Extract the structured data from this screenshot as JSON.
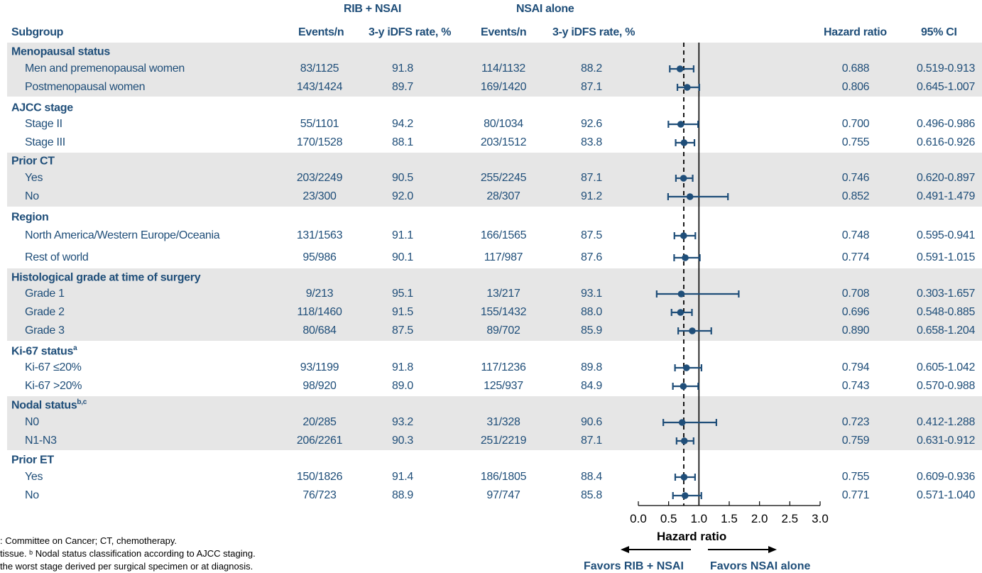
{
  "headers": {
    "rib_group": "RIB + NSAI",
    "nsai_group": "NSAI alone",
    "subgroup": "Subgroup",
    "events_rib": "Events/n",
    "rate_rib": "3-y iDFS rate, %",
    "events_nsai": "Events/n",
    "rate_nsai": "3-y iDFS rate, %",
    "hr": "Hazard ratio",
    "ci": "95% CI"
  },
  "groups": [
    {
      "label": "Menopausal status",
      "sup": ""
    },
    {
      "label": "AJCC stage",
      "sup": ""
    },
    {
      "label": "Prior CT",
      "sup": ""
    },
    {
      "label": "Region",
      "sup": ""
    },
    {
      "label": "Histological grade at time of surgery",
      "sup": ""
    },
    {
      "label": "Ki-67 status",
      "sup": "a"
    },
    {
      "label": "Nodal status",
      "sup": "b,c"
    },
    {
      "label": "Prior ET",
      "sup": ""
    }
  ],
  "rows": [
    {
      "label": "Men and premenopausal women",
      "ev_rib": "83/1125",
      "rate_rib": "91.8",
      "ev_nsai": "114/1132",
      "rate_nsai": "88.2",
      "hr": "0.688",
      "ci": "0.519-0.913"
    },
    {
      "label": "Postmenopausal women",
      "ev_rib": "143/1424",
      "rate_rib": "89.7",
      "ev_nsai": "169/1420",
      "rate_nsai": "87.1",
      "hr": "0.806",
      "ci": "0.645-1.007"
    },
    {
      "label": "Stage II",
      "ev_rib": "55/1101",
      "rate_rib": "94.2",
      "ev_nsai": "80/1034",
      "rate_nsai": "92.6",
      "hr": "0.700",
      "ci": "0.496-0.986"
    },
    {
      "label": "Stage III",
      "ev_rib": "170/1528",
      "rate_rib": "88.1",
      "ev_nsai": "203/1512",
      "rate_nsai": "83.8",
      "hr": "0.755",
      "ci": "0.616-0.926"
    },
    {
      "label": "Yes",
      "ev_rib": "203/2249",
      "rate_rib": "90.5",
      "ev_nsai": "255/2245",
      "rate_nsai": "87.1",
      "hr": "0.746",
      "ci": "0.620-0.897"
    },
    {
      "label": "No",
      "ev_rib": "23/300",
      "rate_rib": "92.0",
      "ev_nsai": "28/307",
      "rate_nsai": "91.2",
      "hr": "0.852",
      "ci": "0.491-1.479"
    },
    {
      "label": "North America/Western Europe/Oceania",
      "ev_rib": "131/1563",
      "rate_rib": "91.1",
      "ev_nsai": "166/1565",
      "rate_nsai": "87.5",
      "hr": "0.748",
      "ci": "0.595-0.941"
    },
    {
      "label": "Rest of world",
      "ev_rib": "95/986",
      "rate_rib": "90.1",
      "ev_nsai": "117/987",
      "rate_nsai": "87.6",
      "hr": "0.774",
      "ci": "0.591-1.015"
    },
    {
      "label": "Grade 1",
      "ev_rib": "9/213",
      "rate_rib": "95.1",
      "ev_nsai": "13/217",
      "rate_nsai": "93.1",
      "hr": "0.708",
      "ci": "0.303-1.657"
    },
    {
      "label": "Grade 2",
      "ev_rib": "118/1460",
      "rate_rib": "91.5",
      "ev_nsai": "155/1432",
      "rate_nsai": "88.0",
      "hr": "0.696",
      "ci": "0.548-0.885"
    },
    {
      "label": "Grade 3",
      "ev_rib": "80/684",
      "rate_rib": "87.5",
      "ev_nsai": "89/702",
      "rate_nsai": "85.9",
      "hr": "0.890",
      "ci": "0.658-1.204"
    },
    {
      "label": "Ki-67 ≤20%",
      "ev_rib": "93/1199",
      "rate_rib": "91.8",
      "ev_nsai": "117/1236",
      "rate_nsai": "89.8",
      "hr": "0.794",
      "ci": "0.605-1.042"
    },
    {
      "label": "Ki-67 >20%",
      "ev_rib": "98/920",
      "rate_rib": "89.0",
      "ev_nsai": "125/937",
      "rate_nsai": "84.9",
      "hr": "0.743",
      "ci": "0.570-0.988"
    },
    {
      "label": "N0",
      "ev_rib": "20/285",
      "rate_rib": "93.2",
      "ev_nsai": "31/328",
      "rate_nsai": "90.6",
      "hr": "0.723",
      "ci": "0.412-1.288"
    },
    {
      "label": "N1-N3",
      "ev_rib": "206/2261",
      "rate_rib": "90.3",
      "ev_nsai": "251/2219",
      "rate_nsai": "87.1",
      "hr": "0.759",
      "ci": "0.631-0.912"
    },
    {
      "label": "Yes",
      "ev_rib": "150/1826",
      "rate_rib": "91.4",
      "ev_nsai": "186/1805",
      "rate_nsai": "88.4",
      "hr": "0.755",
      "ci": "0.609-0.936"
    },
    {
      "label": "No",
      "ev_rib": "76/723",
      "rate_rib": "88.9",
      "ev_nsai": "97/747",
      "rate_nsai": "85.8",
      "hr": "0.771",
      "ci": "0.571-1.040"
    }
  ],
  "footnotes": [
    ": Committee on Cancer; CT, chemotherapy.",
    "tissue. ᵇ Nodal status classification according to AJCC staging.",
    "the worst stage derived per surgical specimen or at diagnosis."
  ],
  "favors": {
    "left": "Favors RIB + NSAI",
    "right": "Favors NSAI alone"
  },
  "chart_data": {
    "type": "forest",
    "xlabel": "Hazard ratio",
    "xlim": [
      0.0,
      3.0
    ],
    "xticks": [
      "0.0",
      "0.5",
      "1.0",
      "1.5",
      "2.0",
      "2.5",
      "3.0"
    ],
    "reference_line": 1.0,
    "overall_line_dashed": 0.75,
    "series": [
      {
        "group": "Menopausal status",
        "label": "Men and premenopausal women",
        "hr": 0.688,
        "lo": 0.519,
        "hi": 0.913
      },
      {
        "group": "Menopausal status",
        "label": "Postmenopausal women",
        "hr": 0.806,
        "lo": 0.645,
        "hi": 1.007
      },
      {
        "group": "AJCC stage",
        "label": "Stage II",
        "hr": 0.7,
        "lo": 0.496,
        "hi": 0.986
      },
      {
        "group": "AJCC stage",
        "label": "Stage III",
        "hr": 0.755,
        "lo": 0.616,
        "hi": 0.926
      },
      {
        "group": "Prior CT",
        "label": "Yes",
        "hr": 0.746,
        "lo": 0.62,
        "hi": 0.897
      },
      {
        "group": "Prior CT",
        "label": "No",
        "hr": 0.852,
        "lo": 0.491,
        "hi": 1.479
      },
      {
        "group": "Region",
        "label": "North America/Western Europe/Oceania",
        "hr": 0.748,
        "lo": 0.595,
        "hi": 0.941
      },
      {
        "group": "Region",
        "label": "Rest of world",
        "hr": 0.774,
        "lo": 0.591,
        "hi": 1.015
      },
      {
        "group": "Histological grade at time of surgery",
        "label": "Grade 1",
        "hr": 0.708,
        "lo": 0.303,
        "hi": 1.657
      },
      {
        "group": "Histological grade at time of surgery",
        "label": "Grade 2",
        "hr": 0.696,
        "lo": 0.548,
        "hi": 0.885
      },
      {
        "group": "Histological grade at time of surgery",
        "label": "Grade 3",
        "hr": 0.89,
        "lo": 0.658,
        "hi": 1.204
      },
      {
        "group": "Ki-67 status",
        "label": "Ki-67 ≤20%",
        "hr": 0.794,
        "lo": 0.605,
        "hi": 1.042
      },
      {
        "group": "Ki-67 status",
        "label": "Ki-67 >20%",
        "hr": 0.743,
        "lo": 0.57,
        "hi": 0.988
      },
      {
        "group": "Nodal status",
        "label": "N0",
        "hr": 0.723,
        "lo": 0.412,
        "hi": 1.288
      },
      {
        "group": "Nodal status",
        "label": "N1-N3",
        "hr": 0.759,
        "lo": 0.631,
        "hi": 0.912
      },
      {
        "group": "Prior ET",
        "label": "Yes",
        "hr": 0.755,
        "lo": 0.609,
        "hi": 0.936
      },
      {
        "group": "Prior ET",
        "label": "No",
        "hr": 0.771,
        "lo": 0.571,
        "hi": 1.04
      }
    ],
    "colors": {
      "text": "#1f4e79",
      "band": "#e6e6e6",
      "marker": "#1f4e79"
    }
  }
}
